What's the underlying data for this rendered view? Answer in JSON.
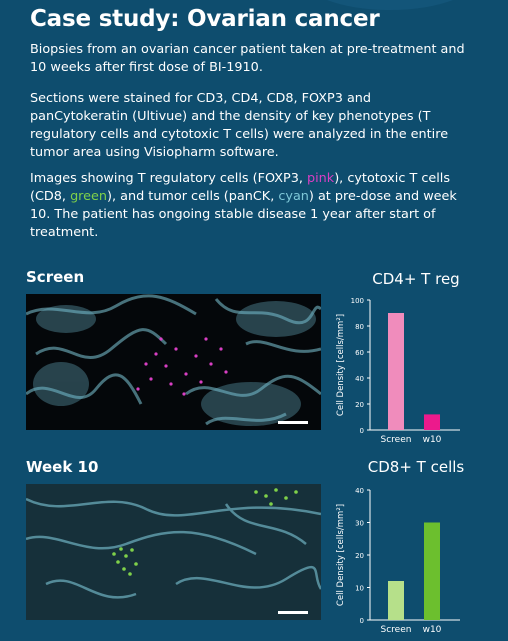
{
  "title": "Case study: Ovarian cancer",
  "paragraphs": {
    "p1": "Biopsies from an ovarian cancer patient taken at pre-treatment and 10 weeks after first dose of BI-1910.",
    "p2": "Sections were stained for CD3, CD4, CD8, FOXP3 and panCytokeratin (Ultivue) and the density of key phenotypes (T regulatory cells and cytotoxic T cells) were analyzed in the entire tumor area using Visiopharm software.",
    "p3_a": "Images showing T regulatory cells (FOXP3, ",
    "p3_pink": "pink",
    "p3_b": "), cytotoxic T cells (CD8, ",
    "p3_green": "green",
    "p3_c": "), and tumor cells (panCK, ",
    "p3_cyan": "cyan",
    "p3_d": ") at pre-dose and week 10. The patient has ongoing stable disease 1 year after start of treatment."
  },
  "panels": {
    "screen_label": "Screen",
    "week10_label": "Week 10"
  },
  "colors": {
    "background": "#0e4d6e",
    "pink": "#d93fc4",
    "green": "#7fd14a",
    "cyan": "#7ec8d8"
  },
  "chart_data": [
    {
      "type": "bar",
      "title": "CD4+ T reg",
      "ylabel": "Cell Density [cells/mm²]",
      "categories": [
        "Screen",
        "w10"
      ],
      "values": [
        90,
        12
      ],
      "bar_colors": [
        "#f08cbc",
        "#ec1a8c"
      ],
      "ylim": [
        0,
        100
      ],
      "yticks": [
        0,
        20,
        40,
        60,
        80,
        100
      ]
    },
    {
      "type": "bar",
      "title": "CD8+ T cells",
      "ylabel": "Cell Density [cells/mm²]",
      "categories": [
        "Screen",
        "w10"
      ],
      "values": [
        12,
        30
      ],
      "bar_colors": [
        "#b6e08a",
        "#6cbf2e"
      ],
      "ylim": [
        0,
        40
      ],
      "yticks": [
        0,
        10,
        20,
        30,
        40
      ]
    }
  ]
}
